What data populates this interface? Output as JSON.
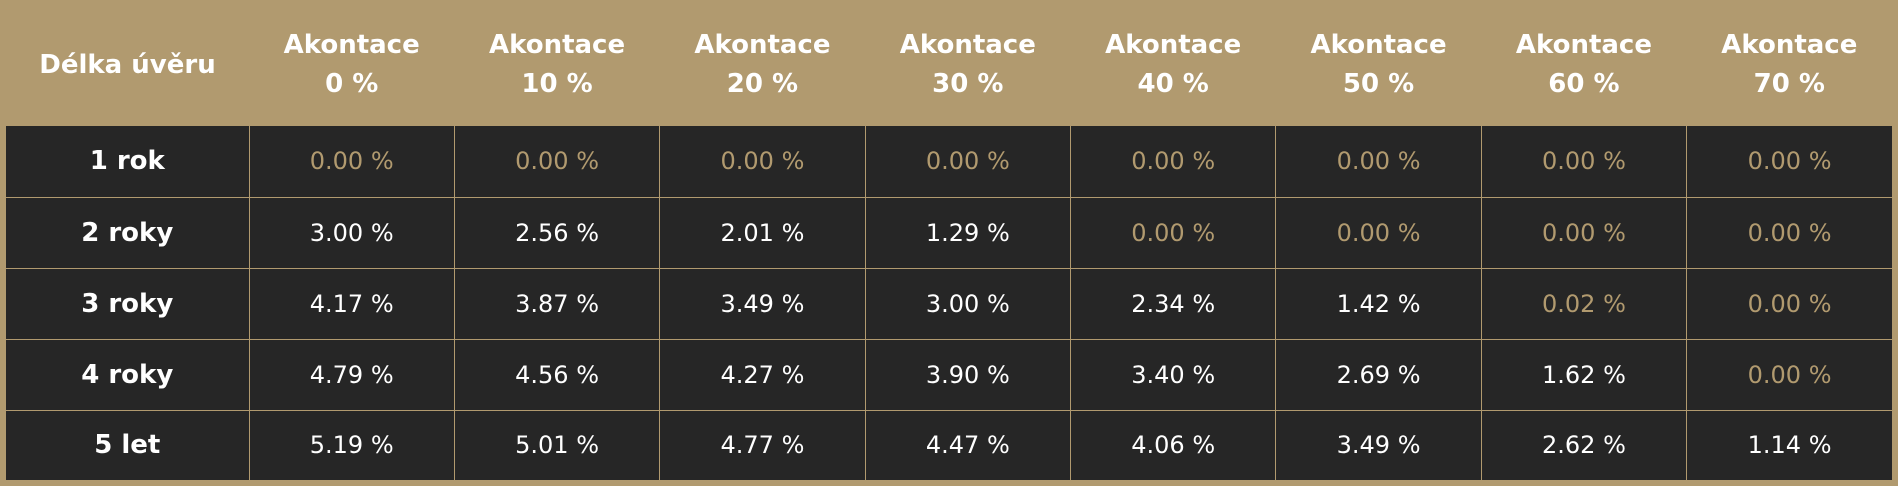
{
  "header": {
    "first": "Délka úvěru",
    "columns": [
      {
        "top": "Akontace",
        "bottom": "0 %"
      },
      {
        "top": "Akontace",
        "bottom": "10 %"
      },
      {
        "top": "Akontace",
        "bottom": "20 %"
      },
      {
        "top": "Akontace",
        "bottom": "30 %"
      },
      {
        "top": "Akontace",
        "bottom": "40 %"
      },
      {
        "top": "Akontace",
        "bottom": "50 %"
      },
      {
        "top": "Akontace",
        "bottom": "60 %"
      },
      {
        "top": "Akontace",
        "bottom": "70 %"
      }
    ]
  },
  "rows": [
    {
      "label": "1 rok",
      "values": [
        "0.00 %",
        "0.00 %",
        "0.00 %",
        "0.00 %",
        "0.00 %",
        "0.00 %",
        "0.00 %",
        "0.00 %"
      ]
    },
    {
      "label": "2 roky",
      "values": [
        "3.00 %",
        "2.56 %",
        "2.01 %",
        "1.29 %",
        "0.00 %",
        "0.00 %",
        "0.00 %",
        "0.00 %"
      ]
    },
    {
      "label": "3 roky",
      "values": [
        "4.17 %",
        "3.87 %",
        "3.49 %",
        "3.00 %",
        "2.34 %",
        "1.42 %",
        "0.02 %",
        "0.00 %"
      ]
    },
    {
      "label": "4 roky",
      "values": [
        "4.79 %",
        "4.56 %",
        "4.27 %",
        "3.90 %",
        "3.40 %",
        "2.69 %",
        "1.62 %",
        "0.00 %"
      ]
    },
    {
      "label": "5 let",
      "values": [
        "5.19 %",
        "5.01 %",
        "4.77 %",
        "4.47 %",
        "4.06 %",
        "3.49 %",
        "2.62 %",
        "1.14 %"
      ]
    }
  ],
  "colors": {
    "accent": "#b19a6f",
    "background": "#262626",
    "text": "#ffffff"
  }
}
